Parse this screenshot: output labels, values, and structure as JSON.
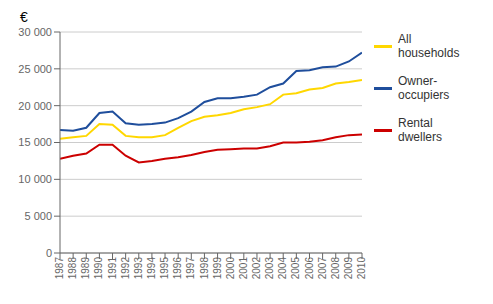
{
  "chart_data": {
    "type": "line",
    "ylabel": "€",
    "x": [
      1987,
      1988,
      1989,
      1990,
      1991,
      1992,
      1993,
      1994,
      1995,
      1996,
      1997,
      1998,
      1999,
      2000,
      2001,
      2002,
      2003,
      2004,
      2005,
      2006,
      2007,
      2008,
      2009,
      2010
    ],
    "series": [
      {
        "name": "Owner-\noccupiers",
        "color": "#1f4e9c",
        "values": [
          16700,
          16600,
          17000,
          19000,
          19200,
          17600,
          17400,
          17500,
          17700,
          18300,
          19200,
          20500,
          21000,
          21000,
          21200,
          21500,
          22500,
          23000,
          24700,
          24800,
          25200,
          25300,
          26000,
          27200
        ]
      },
      {
        "name": "All\nhouseholds",
        "color": "#ffd700",
        "values": [
          15500,
          15700,
          15900,
          17500,
          17400,
          15900,
          15700,
          15700,
          16000,
          17000,
          17900,
          18500,
          18700,
          19000,
          19500,
          19800,
          20200,
          21500,
          21700,
          22200,
          22400,
          23000,
          23200,
          23500
        ]
      },
      {
        "name": "Rental\ndwellers",
        "color": "#cc0000",
        "values": [
          12800,
          13200,
          13500,
          14700,
          14700,
          13200,
          12300,
          12500,
          12800,
          13000,
          13300,
          13700,
          14000,
          14100,
          14200,
          14200,
          14500,
          15000,
          15000,
          15100,
          15300,
          15700,
          16000,
          16100
        ]
      }
    ],
    "xlim": [
      1987,
      2010
    ],
    "xticks": [
      1987,
      1988,
      1989,
      1990,
      1991,
      1992,
      1993,
      1994,
      1995,
      1996,
      1997,
      1998,
      1999,
      2000,
      2001,
      2002,
      2003,
      2004,
      2005,
      2006,
      2007,
      2008,
      2009,
      2010
    ],
    "ylim": [
      0,
      30000
    ],
    "yticks": [
      0,
      {
        "value": 5000,
        "label": "5 000"
      },
      {
        "value": 10000,
        "label": "10 000"
      },
      {
        "value": 15000,
        "label": "15 000"
      },
      {
        "value": 20000,
        "label": "20 000"
      },
      {
        "value": 25000,
        "label": "25 000"
      },
      {
        "value": 30000,
        "label": "30 000"
      }
    ],
    "grid": true,
    "legend": "right"
  }
}
